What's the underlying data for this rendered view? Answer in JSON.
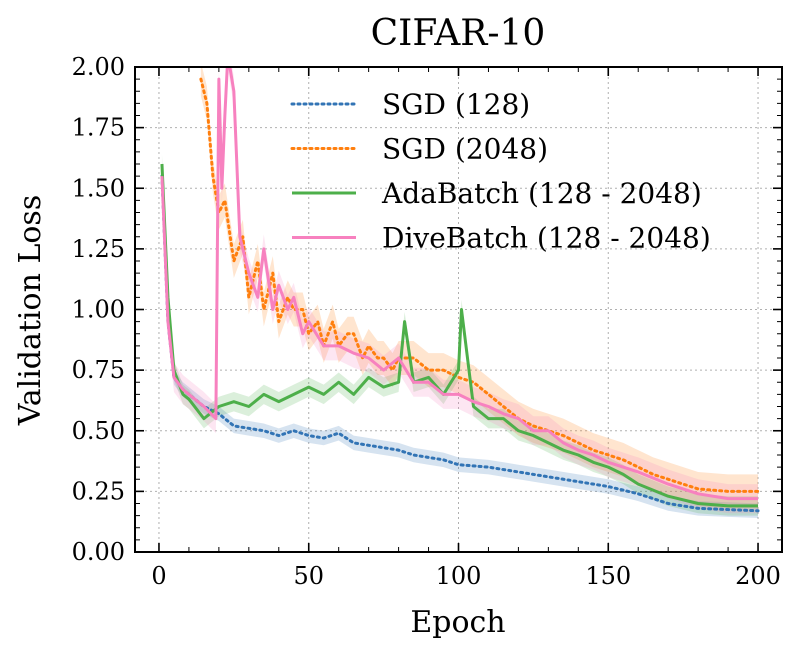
{
  "chart_data": {
    "type": "line",
    "title": "CIFAR-10",
    "xlabel": "Epoch",
    "ylabel": "Validation Loss",
    "xlim": [
      -8,
      208
    ],
    "ylim": [
      0,
      2.0
    ],
    "xticks": [
      0,
      50,
      100,
      150,
      200
    ],
    "xtick_labels": [
      "0",
      "50",
      "100",
      "150",
      "200"
    ],
    "yticks": [
      0,
      0.25,
      0.5,
      0.75,
      1.0,
      1.25,
      1.5,
      1.75,
      2.0
    ],
    "ytick_labels": [
      "0.00",
      "0.25",
      "0.50",
      "0.75",
      "1.00",
      "1.25",
      "1.50",
      "1.75",
      "2.00"
    ],
    "grid": true,
    "legend_position": "top-right",
    "series": [
      {
        "name": "SGD (128)",
        "color": "#3274b5",
        "style": "dotted",
        "band": 0.03,
        "x": [
          1,
          3,
          5,
          8,
          10,
          15,
          20,
          25,
          30,
          35,
          40,
          45,
          50,
          55,
          60,
          65,
          70,
          75,
          80,
          85,
          90,
          95,
          100,
          110,
          120,
          130,
          140,
          150,
          160,
          170,
          180,
          190,
          200
        ],
        "y": [
          1.55,
          0.95,
          0.72,
          0.67,
          0.65,
          0.6,
          0.57,
          0.52,
          0.51,
          0.5,
          0.48,
          0.5,
          0.48,
          0.47,
          0.49,
          0.45,
          0.44,
          0.43,
          0.42,
          0.4,
          0.39,
          0.38,
          0.36,
          0.35,
          0.33,
          0.31,
          0.29,
          0.27,
          0.24,
          0.2,
          0.18,
          0.175,
          0.17
        ]
      },
      {
        "name": "SGD (2048)",
        "color": "#ff7f0e",
        "style": "dotted",
        "band": 0.07,
        "x": [
          14,
          16,
          18,
          20,
          22,
          25,
          28,
          30,
          33,
          35,
          38,
          40,
          43,
          45,
          48,
          50,
          53,
          55,
          58,
          60,
          63,
          65,
          68,
          70,
          73,
          75,
          78,
          80,
          85,
          90,
          95,
          100,
          105,
          110,
          115,
          120,
          125,
          130,
          135,
          140,
          145,
          150,
          155,
          160,
          165,
          170,
          175,
          180,
          190,
          200
        ],
        "y": [
          1.95,
          1.85,
          1.55,
          1.4,
          1.45,
          1.2,
          1.3,
          1.05,
          1.2,
          1.0,
          1.15,
          0.95,
          1.05,
          1.0,
          1.0,
          0.9,
          0.95,
          0.85,
          0.95,
          0.85,
          0.9,
          0.9,
          0.8,
          0.85,
          0.8,
          0.8,
          0.75,
          0.8,
          0.8,
          0.75,
          0.75,
          0.72,
          0.7,
          0.65,
          0.6,
          0.55,
          0.52,
          0.5,
          0.48,
          0.45,
          0.42,
          0.4,
          0.38,
          0.35,
          0.32,
          0.3,
          0.28,
          0.26,
          0.25,
          0.25
        ]
      },
      {
        "name": "AdaBatch (128 - 2048)",
        "color": "#4daf4a",
        "style": "solid",
        "band": 0.04,
        "x": [
          1,
          3,
          5,
          8,
          10,
          15,
          20,
          25,
          30,
          35,
          40,
          45,
          50,
          55,
          60,
          65,
          70,
          75,
          80,
          82,
          85,
          90,
          95,
          100,
          101,
          105,
          110,
          115,
          120,
          125,
          130,
          135,
          140,
          145,
          150,
          155,
          160,
          170,
          180,
          190,
          200
        ],
        "y": [
          1.6,
          1.05,
          0.75,
          0.65,
          0.63,
          0.55,
          0.6,
          0.62,
          0.6,
          0.65,
          0.62,
          0.65,
          0.68,
          0.65,
          0.7,
          0.65,
          0.72,
          0.68,
          0.7,
          0.95,
          0.7,
          0.72,
          0.65,
          0.75,
          1.0,
          0.6,
          0.55,
          0.55,
          0.5,
          0.48,
          0.45,
          0.42,
          0.4,
          0.37,
          0.35,
          0.32,
          0.28,
          0.23,
          0.2,
          0.19,
          0.19
        ]
      },
      {
        "name": "DiveBatch (128 - 2048)",
        "color": "#f781bf",
        "style": "solid",
        "band": 0.06,
        "x": [
          1,
          3,
          5,
          8,
          10,
          15,
          19,
          20,
          21,
          22,
          23,
          25,
          27,
          30,
          33,
          35,
          38,
          40,
          43,
          45,
          48,
          50,
          55,
          60,
          65,
          70,
          75,
          80,
          85,
          90,
          95,
          100,
          105,
          110,
          115,
          120,
          125,
          130,
          135,
          140,
          145,
          150,
          160,
          170,
          180,
          190,
          200
        ],
        "y": [
          1.55,
          0.95,
          0.72,
          0.67,
          0.65,
          0.6,
          0.55,
          1.95,
          1.5,
          1.8,
          2.05,
          1.9,
          1.3,
          1.15,
          1.05,
          1.25,
          1.0,
          1.1,
          1.0,
          1.05,
          0.9,
          0.95,
          0.85,
          0.85,
          0.82,
          0.8,
          0.75,
          0.8,
          0.7,
          0.7,
          0.65,
          0.65,
          0.62,
          0.6,
          0.57,
          0.55,
          0.5,
          0.5,
          0.45,
          0.42,
          0.4,
          0.37,
          0.33,
          0.28,
          0.24,
          0.22,
          0.22
        ]
      }
    ]
  }
}
